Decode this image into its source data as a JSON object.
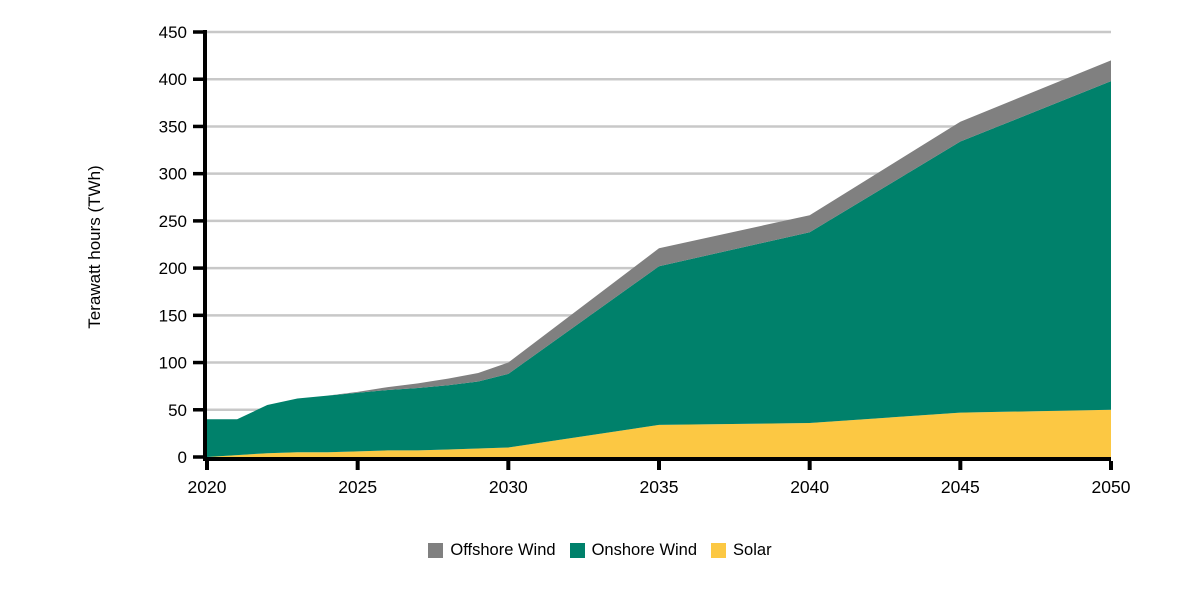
{
  "chart_data": {
    "type": "area",
    "stacked": true,
    "title": "",
    "xlabel": "",
    "ylabel": "Terawatt hours (TWh)",
    "x": [
      2020,
      2021,
      2022,
      2023,
      2024,
      2025,
      2026,
      2027,
      2028,
      2029,
      2030,
      2035,
      2040,
      2045,
      2050
    ],
    "series": [
      {
        "name": "Solar",
        "color": "#FCC843",
        "values": [
          0,
          2,
          4,
          5,
          5,
          6,
          7,
          7,
          8,
          9,
          10,
          34,
          36,
          47,
          50
        ]
      },
      {
        "name": "Onshore Wind",
        "color": "#00816B",
        "values": [
          40,
          38,
          51,
          57,
          60,
          62,
          64,
          66,
          68,
          71,
          78,
          168,
          202,
          287,
          348
        ]
      },
      {
        "name": "Offshore Wind",
        "color": "#808080",
        "values": [
          0,
          0,
          0,
          0,
          0,
          1,
          3,
          5,
          7,
          9,
          12,
          19,
          18,
          21,
          22
        ]
      }
    ],
    "xlim": [
      2020,
      2050
    ],
    "ylim": [
      0,
      450
    ],
    "yticks": [
      0,
      50,
      100,
      150,
      200,
      250,
      300,
      350,
      400,
      450
    ],
    "xticks": [
      2020,
      2025,
      2030,
      2035,
      2040,
      2045,
      2050
    ],
    "grid": true,
    "legend_position": "bottom"
  },
  "y_axis": {
    "title": "Terawatt hours (TWh)"
  },
  "legend": {
    "items": [
      {
        "label": "Offshore Wind",
        "color": "#808080"
      },
      {
        "label": "Onshore Wind",
        "color": "#00816B"
      },
      {
        "label": "Solar",
        "color": "#FCC843"
      }
    ]
  },
  "colors": {
    "background": "#FFFFFF",
    "axis": "#000000",
    "gridline": "#C8C8C8",
    "text": "#000000"
  }
}
